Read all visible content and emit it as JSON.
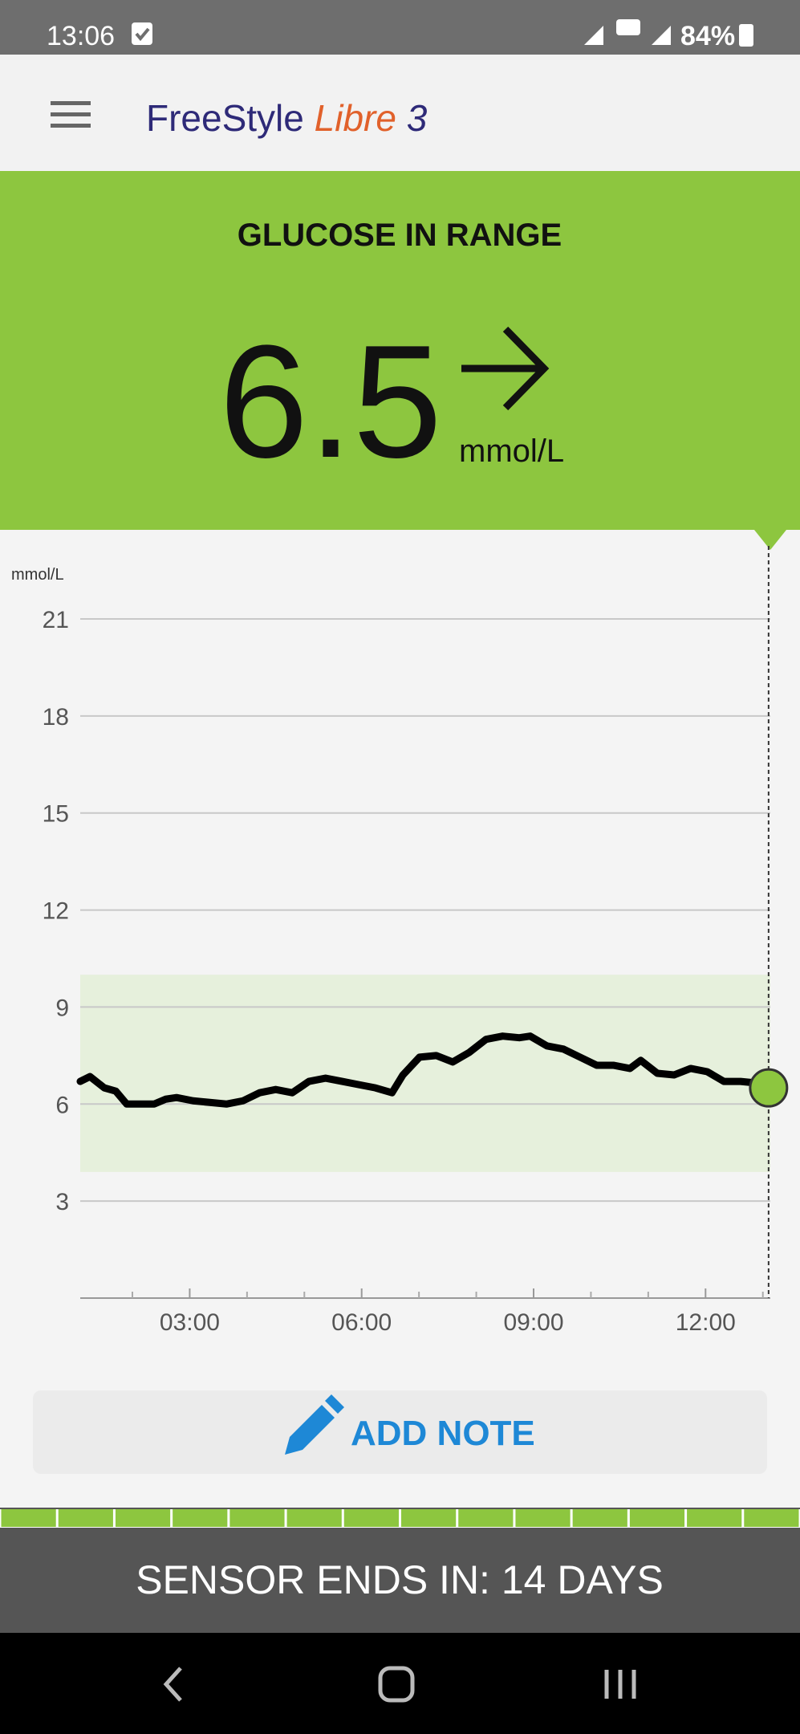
{
  "status_bar": {
    "time": "13:06",
    "battery": "84%"
  },
  "header": {
    "brand": "FreeStyle",
    "product": "Libre",
    "version": "3"
  },
  "reading": {
    "status": "GLUCOSE IN RANGE",
    "value": 6.5,
    "unit": "mmol/L"
  },
  "chart_data": {
    "type": "line",
    "y_label": "mmol/L",
    "x": [
      1.09,
      1.26,
      1.51,
      1.71,
      1.9,
      2.09,
      2.38,
      2.58,
      2.77,
      3.06,
      3.35,
      3.64,
      3.93,
      4.22,
      4.5,
      4.79,
      5.08,
      5.37,
      5.66,
      5.95,
      6.24,
      6.53,
      6.72,
      7.01,
      7.3,
      7.59,
      7.88,
      8.17,
      8.46,
      8.75,
      8.94,
      9.23,
      9.52,
      9.81,
      10.1,
      10.39,
      10.68,
      10.87,
      11.16,
      11.45,
      11.74,
      12.03,
      12.32,
      12.61,
      12.9
    ],
    "series": [
      {
        "color": "#000000",
        "values": [
          6.7,
          6.85,
          6.5,
          6.4,
          6.0,
          6.0,
          6.0,
          6.15,
          6.2,
          6.1,
          6.05,
          6.0,
          6.1,
          6.35,
          6.45,
          6.35,
          6.7,
          6.8,
          6.7,
          6.6,
          6.5,
          6.35,
          6.9,
          7.45,
          7.5,
          7.3,
          7.6,
          8.0,
          8.1,
          8.05,
          8.1,
          7.8,
          7.7,
          7.45,
          7.2,
          7.2,
          7.1,
          7.35,
          6.95,
          6.9,
          7.1,
          7.0,
          6.7,
          6.7,
          6.65
        ]
      }
    ],
    "current_x": 13.1,
    "target_range": [
      3.9,
      10
    ],
    "xlim": [
      1.09,
      13.13
    ],
    "xticks": [
      {
        "value": 3,
        "label": "03:00"
      },
      {
        "value": 6,
        "label": "06:00"
      },
      {
        "value": 9,
        "label": "09:00"
      },
      {
        "value": 12,
        "label": "12:00"
      }
    ],
    "xminorticks": [
      2,
      4,
      5,
      7,
      8,
      10,
      11,
      13
    ],
    "ylim": [
      0,
      21
    ],
    "yticks": [
      3,
      6,
      9,
      12,
      15,
      18,
      21
    ],
    "grid": true
  },
  "add_note": "ADD NOTE",
  "sensor": "SENSOR ENDS IN: 14 DAYS"
}
